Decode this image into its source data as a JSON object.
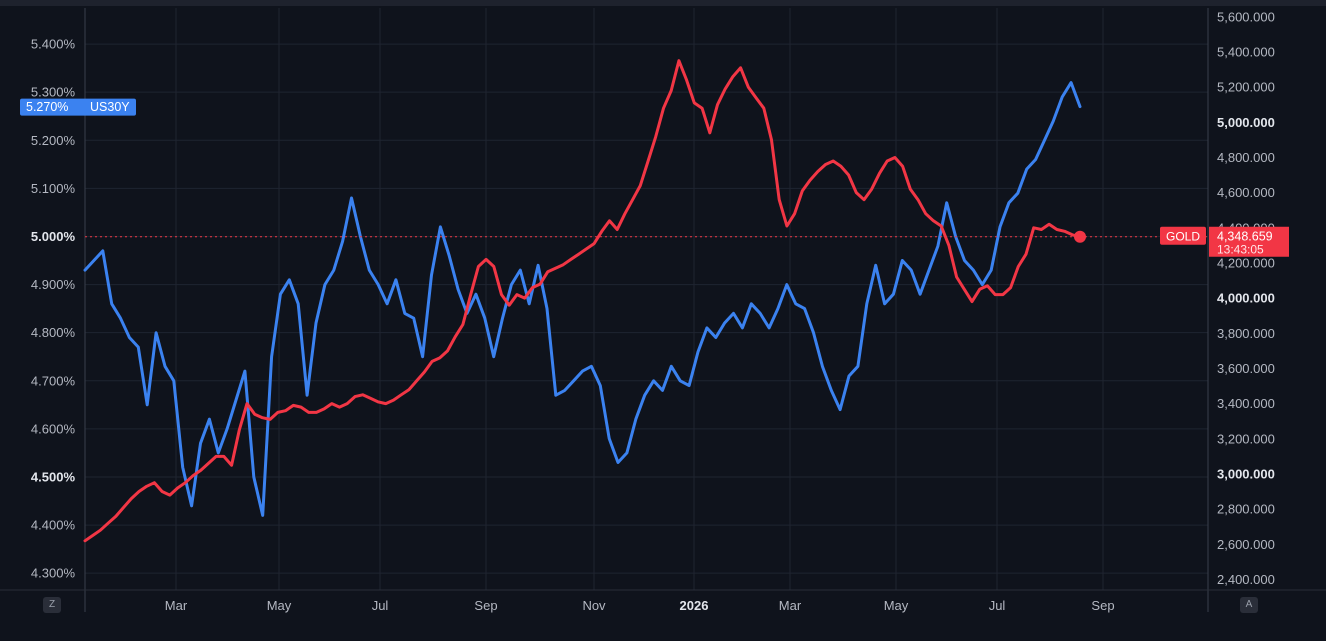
{
  "chart_data": {
    "type": "line",
    "x_ticks": [
      "Mar",
      "May",
      "Jul",
      "Sep",
      "Nov",
      "2026",
      "Mar",
      "May",
      "Jul",
      "Sep"
    ],
    "left_axis": {
      "ticks": [
        "5.400%",
        "5.300%",
        "5.200%",
        "5.100%",
        "5.000%",
        "4.900%",
        "4.800%",
        "4.700%",
        "4.600%",
        "4.500%",
        "4.400%",
        "4.300%"
      ],
      "bold_ticks": [
        "5.000%",
        "4.500%"
      ],
      "range": [
        4.265,
        5.475
      ]
    },
    "right_axis": {
      "ticks": [
        "5,600.000",
        "5,400.000",
        "5,200.000",
        "5,000.000",
        "4,800.000",
        "4,600.000",
        "4,400.000",
        "4,200.000",
        "4,000.000",
        "3,800.000",
        "3,600.000",
        "3,400.000",
        "3,200.000",
        "3,000.000",
        "2,800.000",
        "2,600.000",
        "2,400.000"
      ],
      "bold_ticks": [
        "5,000.000",
        "4,000.000",
        "3,000.000"
      ],
      "range": [
        2340,
        5650
      ]
    },
    "series": [
      {
        "name": "US30Y",
        "axis": "left",
        "color": "#3b82f0",
        "last_value": "5.270%",
        "values": [
          4.93,
          4.95,
          4.97,
          4.86,
          4.83,
          4.79,
          4.77,
          4.65,
          4.8,
          4.73,
          4.7,
          4.52,
          4.44,
          4.57,
          4.62,
          4.55,
          4.6,
          4.66,
          4.72,
          4.5,
          4.42,
          4.75,
          4.88,
          4.91,
          4.86,
          4.67,
          4.82,
          4.9,
          4.93,
          4.99,
          5.08,
          5.0,
          4.93,
          4.9,
          4.86,
          4.91,
          4.84,
          4.83,
          4.75,
          4.92,
          5.02,
          4.96,
          4.89,
          4.84,
          4.88,
          4.83,
          4.75,
          4.83,
          4.9,
          4.93,
          4.86,
          4.94,
          4.85,
          4.67,
          4.68,
          4.7,
          4.72,
          4.73,
          4.69,
          4.58,
          4.53,
          4.55,
          4.62,
          4.67,
          4.7,
          4.68,
          4.73,
          4.7,
          4.69,
          4.76,
          4.81,
          4.79,
          4.82,
          4.84,
          4.81,
          4.86,
          4.84,
          4.81,
          4.85,
          4.9,
          4.86,
          4.85,
          4.8,
          4.73,
          4.68,
          4.64,
          4.71,
          4.73,
          4.86,
          4.94,
          4.86,
          4.88,
          4.95,
          4.93,
          4.88,
          4.93,
          4.98,
          5.07,
          5.0,
          4.95,
          4.93,
          4.9,
          4.93,
          5.02,
          5.07,
          5.09,
          5.14,
          5.16,
          5.2,
          5.24,
          5.29,
          5.32,
          5.27
        ]
      },
      {
        "name": "GOLD",
        "axis": "right",
        "color": "#f23645",
        "last_value": "4,348.659",
        "countdown": "13:43:05",
        "values": [
          2620,
          2650,
          2680,
          2720,
          2760,
          2810,
          2860,
          2900,
          2930,
          2950,
          2900,
          2880,
          2920,
          2950,
          2990,
          3020,
          3060,
          3100,
          3100,
          3050,
          3250,
          3400,
          3340,
          3320,
          3310,
          3350,
          3360,
          3390,
          3380,
          3350,
          3350,
          3370,
          3400,
          3380,
          3400,
          3440,
          3450,
          3430,
          3410,
          3400,
          3420,
          3450,
          3480,
          3530,
          3580,
          3640,
          3660,
          3700,
          3780,
          3850,
          4020,
          4180,
          4220,
          4180,
          4020,
          3960,
          4020,
          4000,
          4060,
          4080,
          4150,
          4170,
          4190,
          4220,
          4250,
          4280,
          4310,
          4380,
          4440,
          4390,
          4480,
          4560,
          4640,
          4780,
          4920,
          5080,
          5180,
          5350,
          5240,
          5110,
          5080,
          4940,
          5100,
          5190,
          5260,
          5310,
          5200,
          5140,
          5080,
          4900,
          4560,
          4410,
          4480,
          4610,
          4670,
          4720,
          4760,
          4780,
          4750,
          4700,
          4600,
          4560,
          4620,
          4710,
          4780,
          4800,
          4750,
          4620,
          4560,
          4480,
          4440,
          4410,
          4300,
          4120,
          4050,
          3980,
          4050,
          4070,
          4020,
          4020,
          4060,
          4180,
          4250,
          4400,
          4390,
          4420,
          4390,
          4380,
          4360,
          4349
        ]
      }
    ],
    "price_label_gold": "GOLD",
    "price_label_us30y": "US30Y",
    "legend": "none",
    "grid": true
  },
  "ui": {
    "corner_left": "Z",
    "corner_right": "A"
  }
}
